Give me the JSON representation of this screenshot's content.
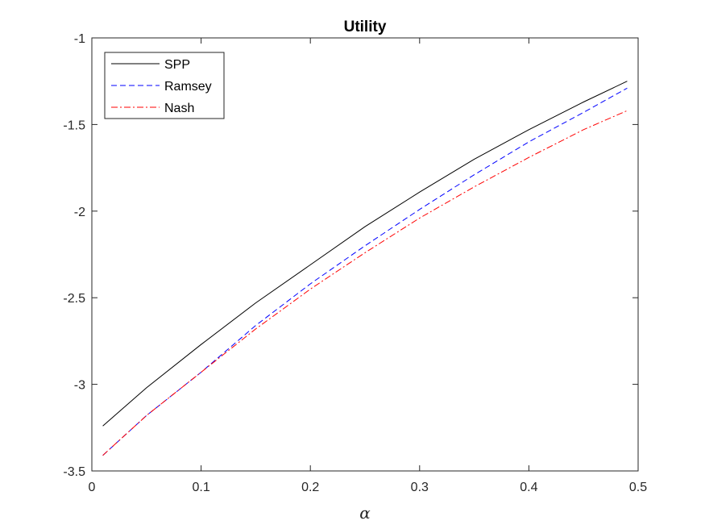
{
  "chart_data": {
    "type": "line",
    "title": "Utility",
    "xlabel": "α",
    "ylabel": "",
    "xlim": [
      0,
      0.5
    ],
    "ylim": [
      -3.5,
      -1
    ],
    "xticks": [
      0,
      0.1,
      0.2,
      0.3,
      0.4,
      0.5
    ],
    "xtick_labels": [
      "0",
      "0.1",
      "0.2",
      "0.3",
      "0.4",
      "0.5"
    ],
    "yticks": [
      -3.5,
      -3,
      -2.5,
      -2,
      -1.5,
      -1
    ],
    "ytick_labels": [
      "-3.5",
      "-3",
      "-2.5",
      "-2",
      "-1.5",
      "-1"
    ],
    "grid": false,
    "legend_position": "top-left",
    "x": [
      0.01,
      0.05,
      0.1,
      0.15,
      0.2,
      0.25,
      0.3,
      0.35,
      0.4,
      0.45,
      0.49
    ],
    "series": [
      {
        "name": "SPP",
        "color": "#000000",
        "dash": "solid",
        "values": [
          -3.24,
          -3.02,
          -2.77,
          -2.53,
          -2.31,
          -2.09,
          -1.89,
          -1.7,
          -1.53,
          -1.37,
          -1.25
        ]
      },
      {
        "name": "Ramsey",
        "color": "#0000ff",
        "dash": "dashed",
        "values": [
          -3.41,
          -3.18,
          -2.93,
          -2.66,
          -2.42,
          -2.2,
          -1.99,
          -1.79,
          -1.6,
          -1.43,
          -1.29
        ]
      },
      {
        "name": "Nash",
        "color": "#ff0000",
        "dash": "dashdot",
        "values": [
          -3.41,
          -3.18,
          -2.93,
          -2.68,
          -2.45,
          -2.24,
          -2.04,
          -1.86,
          -1.69,
          -1.53,
          -1.42
        ]
      }
    ]
  }
}
